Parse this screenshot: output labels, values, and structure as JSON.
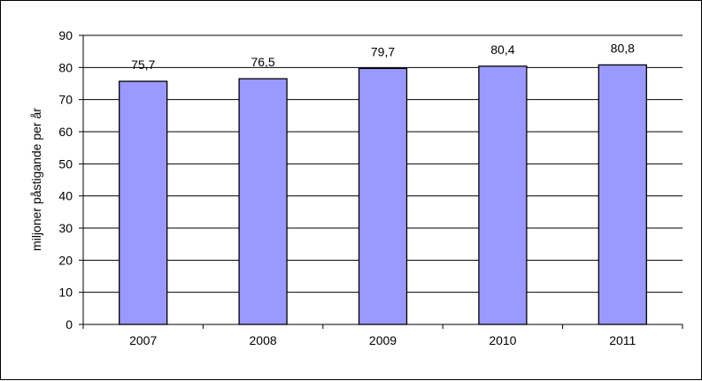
{
  "chart_data": {
    "type": "bar",
    "categories": [
      "2007",
      "2008",
      "2009",
      "2010",
      "2011"
    ],
    "values": [
      75.7,
      76.5,
      79.7,
      80.4,
      80.8
    ],
    "data_labels": [
      "75,7",
      "76,5",
      "79,7",
      "80,4",
      "80,8"
    ],
    "ylabel": "miljoner påstigande per år",
    "ylim": [
      0,
      90
    ],
    "yticks": [
      0,
      10,
      20,
      30,
      40,
      50,
      60,
      70,
      80,
      90
    ],
    "grid": true,
    "legend": "none",
    "bar_color": "#9999ff"
  }
}
